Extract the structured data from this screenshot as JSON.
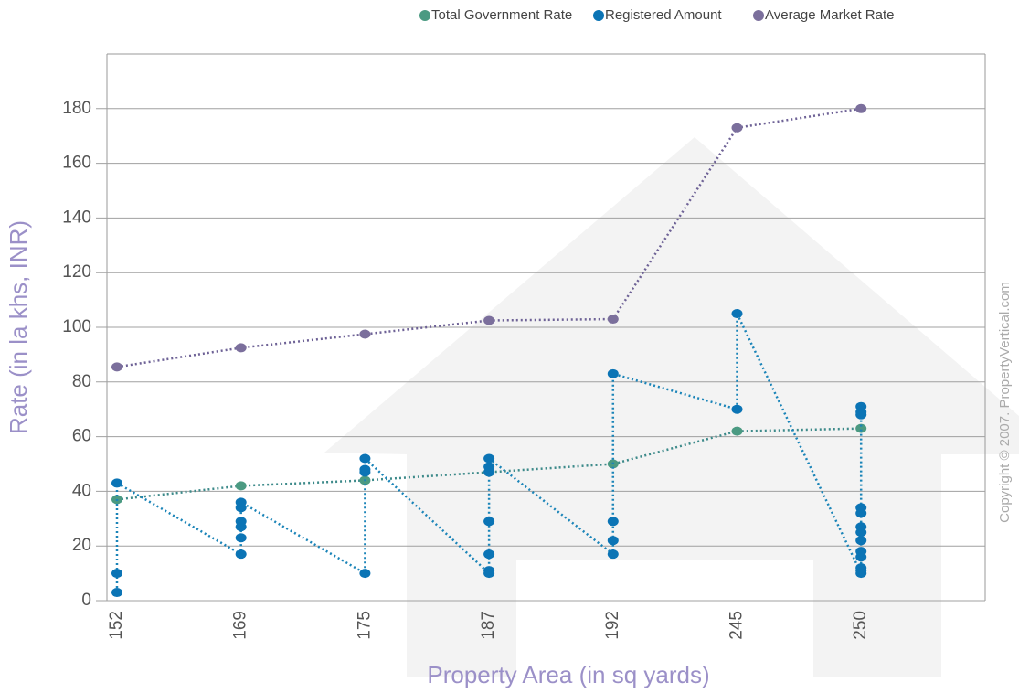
{
  "chart_data": {
    "type": "line",
    "x_label": "Property Area (in sq yards)",
    "y_label": "Rate (in la khs, INR)",
    "copyright": "Copyright © 2007. PropertyVertical.com",
    "categories": [
      152,
      169,
      175,
      187,
      192,
      245,
      250
    ],
    "ylim": [
      0,
      200
    ],
    "yticks": [
      0,
      20,
      40,
      60,
      80,
      100,
      120,
      140,
      160,
      180
    ],
    "grid": true,
    "legend": "top",
    "series": [
      {
        "name": "Total Government Rate",
        "color": "#4b9a82",
        "line_color": "#3d8a8a",
        "x": [
          152,
          169,
          175,
          187,
          192,
          245,
          250
        ],
        "values": [
          37,
          42,
          44,
          47,
          50,
          62,
          63
        ]
      },
      {
        "name": "Registered Amount",
        "color": "#0b74b5",
        "line_color": "#1a84b8",
        "x": [
          152,
          152,
          152,
          169,
          169,
          169,
          169,
          169,
          169,
          175,
          175,
          175,
          175,
          187,
          187,
          187,
          187,
          187,
          187,
          187,
          192,
          192,
          192,
          192,
          245,
          245,
          250,
          250,
          250,
          250,
          250,
          250,
          250,
          250,
          250,
          250,
          250,
          250,
          250
        ],
        "values": [
          3,
          10,
          43,
          17,
          23,
          27,
          29,
          34,
          36,
          10,
          47,
          48,
          52,
          10,
          11,
          17,
          29,
          47,
          49,
          52,
          17,
          22,
          29,
          83,
          70,
          105,
          10,
          11,
          12,
          16,
          18,
          22,
          25,
          27,
          32,
          34,
          68,
          69,
          71
        ]
      },
      {
        "name": "Average Market Rate",
        "color": "#7b6f9c",
        "line_color": "#6e6296",
        "x": [
          152,
          169,
          175,
          187,
          192,
          245,
          250
        ],
        "values": [
          85.5,
          92.5,
          97.5,
          102.5,
          103,
          173,
          180
        ]
      }
    ]
  }
}
